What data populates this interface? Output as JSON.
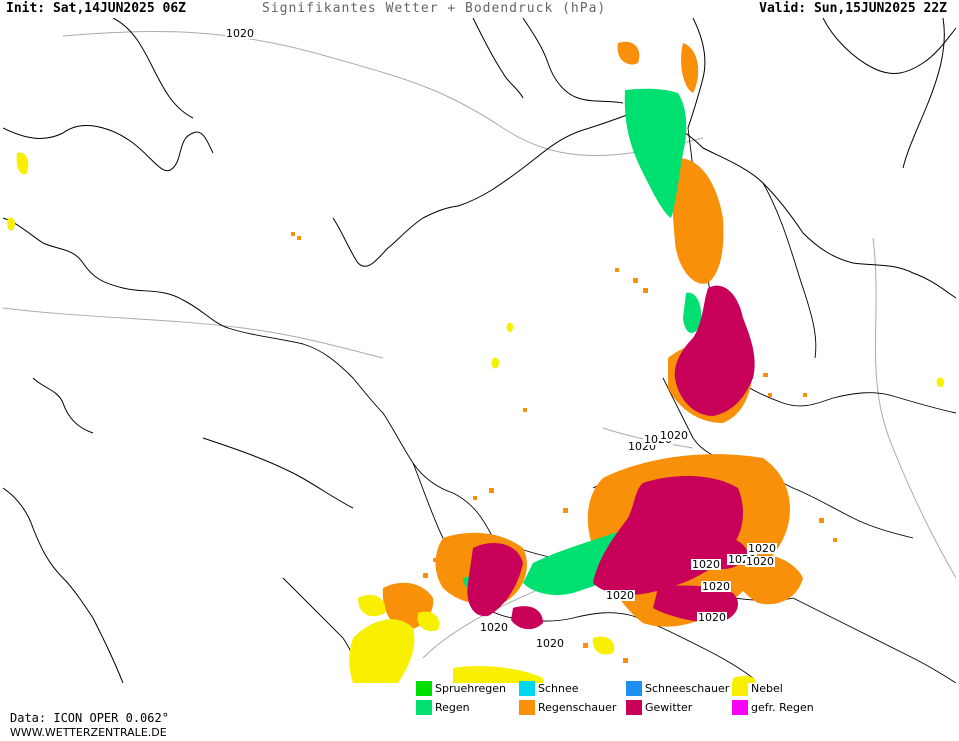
{
  "header": {
    "init": "Init: Sat,14JUN2025 06Z",
    "title": "Signifikantes Wetter + Bodendruck (hPa)",
    "valid": "Valid: Sun,15JUN2025 22Z"
  },
  "isobar_labels": [
    "1020",
    "1020",
    "1020",
    "1020",
    "1020",
    "1020",
    "1020",
    "1020",
    "1020",
    "1020",
    "1020",
    "1020",
    "1020"
  ],
  "legend": {
    "items": [
      {
        "label": "Spruehregen",
        "color": "#00e000",
        "icon": "drizzle-swatch"
      },
      {
        "label": "Schnee",
        "color": "#00d8f0",
        "icon": "snow-swatch"
      },
      {
        "label": "Schneeschauer",
        "color": "#1e8ef0",
        "icon": "snow-shower-swatch"
      },
      {
        "label": "Nebel",
        "color": "#f8f000",
        "icon": "fog-swatch"
      },
      {
        "label": "Regen",
        "color": "#00e070",
        "icon": "rain-swatch"
      },
      {
        "label": "Regenschauer",
        "color": "#f8900a",
        "icon": "rain-shower-swatch"
      },
      {
        "label": "Gewitter",
        "color": "#c8005a",
        "icon": "thunderstorm-swatch"
      },
      {
        "label": "gefr. Regen",
        "color": "#f800f8",
        "icon": "freezing-rain-swatch"
      }
    ]
  },
  "footer": {
    "data_source": "Data: ICON OPER 0.062°",
    "website": "WWW.WETTERZENTRALE.DE"
  }
}
